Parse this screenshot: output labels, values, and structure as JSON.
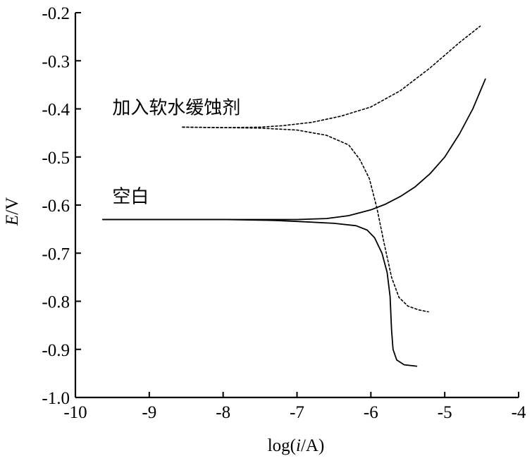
{
  "chart_data": {
    "type": "line",
    "xlabel": {
      "prefix": "log(",
      "italic": "i",
      "suffix": "/A)"
    },
    "ylabel": {
      "italic": "E",
      "suffix": "/V"
    },
    "xlim": [
      -10,
      -4
    ],
    "ylim": [
      -1.0,
      -0.2
    ],
    "xticks": [
      -10,
      -9,
      -8,
      -7,
      -6,
      -5,
      -4
    ],
    "xtick_labels": [
      "-10",
      "-9",
      "-8",
      "-7",
      "-6",
      "-5",
      "-4"
    ],
    "yticks": [
      -1.0,
      -0.9,
      -0.8,
      -0.7,
      -0.6,
      -0.5,
      -0.4,
      -0.3,
      -0.2
    ],
    "ytick_labels": [
      "-1.0",
      "-0.9",
      "-0.8",
      "-0.7",
      "-0.6",
      "-0.5",
      "-0.4",
      "-0.3",
      "-0.2"
    ],
    "grid": false,
    "series": [
      {
        "name": "空白",
        "style": "solid",
        "color": "#000000",
        "branches": [
          [
            [
              -9.63,
              -0.63
            ],
            [
              -9.0,
              -0.63
            ],
            [
              -8.0,
              -0.63
            ],
            [
              -7.0,
              -0.63
            ],
            [
              -6.6,
              -0.628
            ],
            [
              -6.3,
              -0.622
            ],
            [
              -6.0,
              -0.61
            ],
            [
              -5.8,
              -0.598
            ],
            [
              -5.6,
              -0.582
            ],
            [
              -5.4,
              -0.562
            ],
            [
              -5.2,
              -0.535
            ],
            [
              -5.0,
              -0.5
            ],
            [
              -4.8,
              -0.452
            ],
            [
              -4.62,
              -0.4
            ],
            [
              -4.45,
              -0.338
            ]
          ],
          [
            [
              -9.63,
              -0.63
            ],
            [
              -9.0,
              -0.63
            ],
            [
              -8.0,
              -0.63
            ],
            [
              -7.3,
              -0.632
            ],
            [
              -7.0,
              -0.634
            ],
            [
              -6.5,
              -0.638
            ],
            [
              -6.2,
              -0.643
            ],
            [
              -6.05,
              -0.652
            ],
            [
              -5.95,
              -0.668
            ],
            [
              -5.85,
              -0.7
            ],
            [
              -5.78,
              -0.74
            ],
            [
              -5.74,
              -0.79
            ],
            [
              -5.72,
              -0.86
            ],
            [
              -5.7,
              -0.9
            ],
            [
              -5.65,
              -0.922
            ],
            [
              -5.55,
              -0.932
            ],
            [
              -5.38,
              -0.935
            ]
          ]
        ]
      },
      {
        "name": "加入软水缓蚀剂",
        "style": "dashed",
        "color": "#000000",
        "branches": [
          [
            [
              -8.55,
              -0.438
            ],
            [
              -8.0,
              -0.439
            ],
            [
              -7.5,
              -0.438
            ],
            [
              -7.2,
              -0.435
            ],
            [
              -6.8,
              -0.428
            ],
            [
              -6.4,
              -0.415
            ],
            [
              -6.0,
              -0.396
            ],
            [
              -5.6,
              -0.362
            ],
            [
              -5.2,
              -0.315
            ],
            [
              -4.8,
              -0.262
            ],
            [
              -4.52,
              -0.228
            ]
          ],
          [
            [
              -8.55,
              -0.438
            ],
            [
              -8.0,
              -0.439
            ],
            [
              -7.5,
              -0.44
            ],
            [
              -7.0,
              -0.444
            ],
            [
              -6.6,
              -0.455
            ],
            [
              -6.3,
              -0.475
            ],
            [
              -6.15,
              -0.505
            ],
            [
              -6.02,
              -0.545
            ],
            [
              -5.92,
              -0.605
            ],
            [
              -5.82,
              -0.68
            ],
            [
              -5.72,
              -0.75
            ],
            [
              -5.62,
              -0.792
            ],
            [
              -5.5,
              -0.81
            ],
            [
              -5.35,
              -0.818
            ],
            [
              -5.22,
              -0.822
            ]
          ]
        ]
      }
    ],
    "annotations": [
      {
        "text": "加入软水缓蚀剂",
        "x": -9.5,
        "y": -0.41
      },
      {
        "text": "空白",
        "x": -9.5,
        "y": -0.595
      }
    ]
  }
}
